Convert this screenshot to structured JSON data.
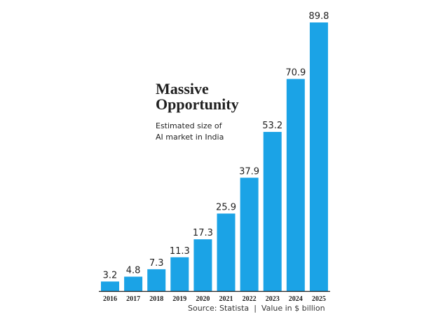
{
  "title_lines": [
    "Massive",
    "Opportunity"
  ],
  "subtitle_lines": [
    "Estimated size of",
    "AI market in India"
  ],
  "source": "Source: Statista",
  "separator": "|",
  "unit_note": "Value in $ billion",
  "colors": {
    "bar": "#1ba3e6",
    "axis": "#222222",
    "text": "#1f1f1f"
  },
  "chart_data": {
    "type": "bar",
    "categories": [
      "2016",
      "2017",
      "2018",
      "2019",
      "2020",
      "2021",
      "2022",
      "2023",
      "2024",
      "2025"
    ],
    "values": [
      3.2,
      4.8,
      7.3,
      11.3,
      17.3,
      25.9,
      37.9,
      53.2,
      70.9,
      89.8
    ],
    "data_labels": [
      "3.2",
      "4.8",
      "7.3",
      "11.3",
      "17.3",
      "25.9",
      "37.9",
      "53.2",
      "70.9",
      "89.8"
    ],
    "ylim": [
      0,
      89.8
    ],
    "grid": false,
    "legend": "none"
  }
}
